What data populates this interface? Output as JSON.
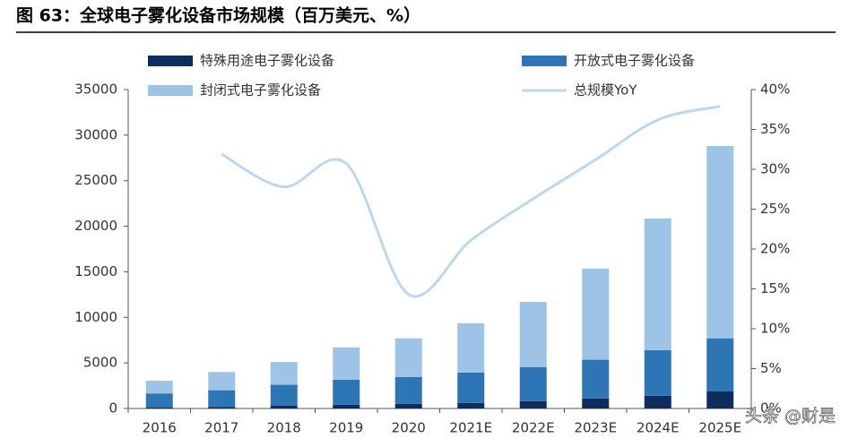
{
  "chart_data": {
    "type": "stacked-bar-line",
    "title": "图 63：全球电子雾化设备市场规模（百万美元、%）",
    "categories": [
      "2016",
      "2017",
      "2018",
      "2019",
      "2020",
      "2021E",
      "2022E",
      "2023E",
      "2024E",
      "2025E"
    ],
    "series": [
      {
        "name": "特殊用途电子雾化设备",
        "color": "#0d2d5e",
        "values": [
          100,
          150,
          300,
          400,
          500,
          600,
          800,
          1100,
          1400,
          1900
        ]
      },
      {
        "name": "开放式电子雾化设备",
        "color": "#2e75b6",
        "values": [
          1550,
          1850,
          2300,
          2750,
          2950,
          3350,
          3750,
          4250,
          5000,
          5800
        ]
      },
      {
        "name": "封闭式电子雾化设备",
        "color": "#9dc3e6",
        "values": [
          1400,
          2000,
          2500,
          3550,
          4250,
          5400,
          7150,
          10000,
          14450,
          21100
        ]
      },
      {
        "name": "总规模YoY",
        "color": "#bdd7ee",
        "axis": "y2",
        "values": [
          null,
          31.9,
          27.8,
          30.7,
          14.3,
          21.1,
          26.3,
          31.2,
          36.2,
          37.9
        ]
      }
    ],
    "ylim": [
      0,
      35000
    ],
    "yticks": [
      0,
      5000,
      10000,
      15000,
      20000,
      25000,
      30000,
      35000
    ],
    "y2lim": [
      0,
      40
    ],
    "y2ticks": [
      {
        "value": 0,
        "label": "0%"
      },
      {
        "value": 5,
        "label": "5%"
      },
      {
        "value": 10,
        "label": "10%"
      },
      {
        "value": 15,
        "label": "15%"
      },
      {
        "value": 20,
        "label": "20%"
      },
      {
        "value": 25,
        "label": "25%"
      },
      {
        "value": 30,
        "label": "30%"
      },
      {
        "value": 35,
        "label": "35%"
      },
      {
        "value": 40,
        "label": "40%"
      }
    ],
    "watermark": "头条 @财是"
  }
}
